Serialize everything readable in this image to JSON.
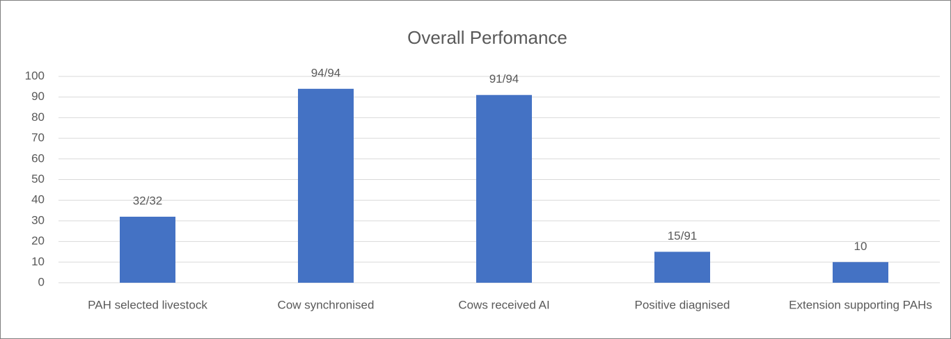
{
  "chart_data": {
    "type": "bar",
    "title": "Overall Perfomance",
    "categories": [
      "PAH selected livestock",
      "Cow synchronised",
      "Cows received AI",
      "Positive diagnised",
      "Extension supporting PAHs"
    ],
    "values": [
      32,
      94,
      91,
      15,
      10
    ],
    "value_labels": [
      "32/32",
      "94/94",
      "91/94",
      "15/91",
      "10"
    ],
    "color": "#4472c4",
    "ylim": [
      0,
      100
    ],
    "yticks": [
      0,
      10,
      20,
      30,
      40,
      50,
      60,
      70,
      80,
      90,
      100
    ],
    "grid": true
  }
}
